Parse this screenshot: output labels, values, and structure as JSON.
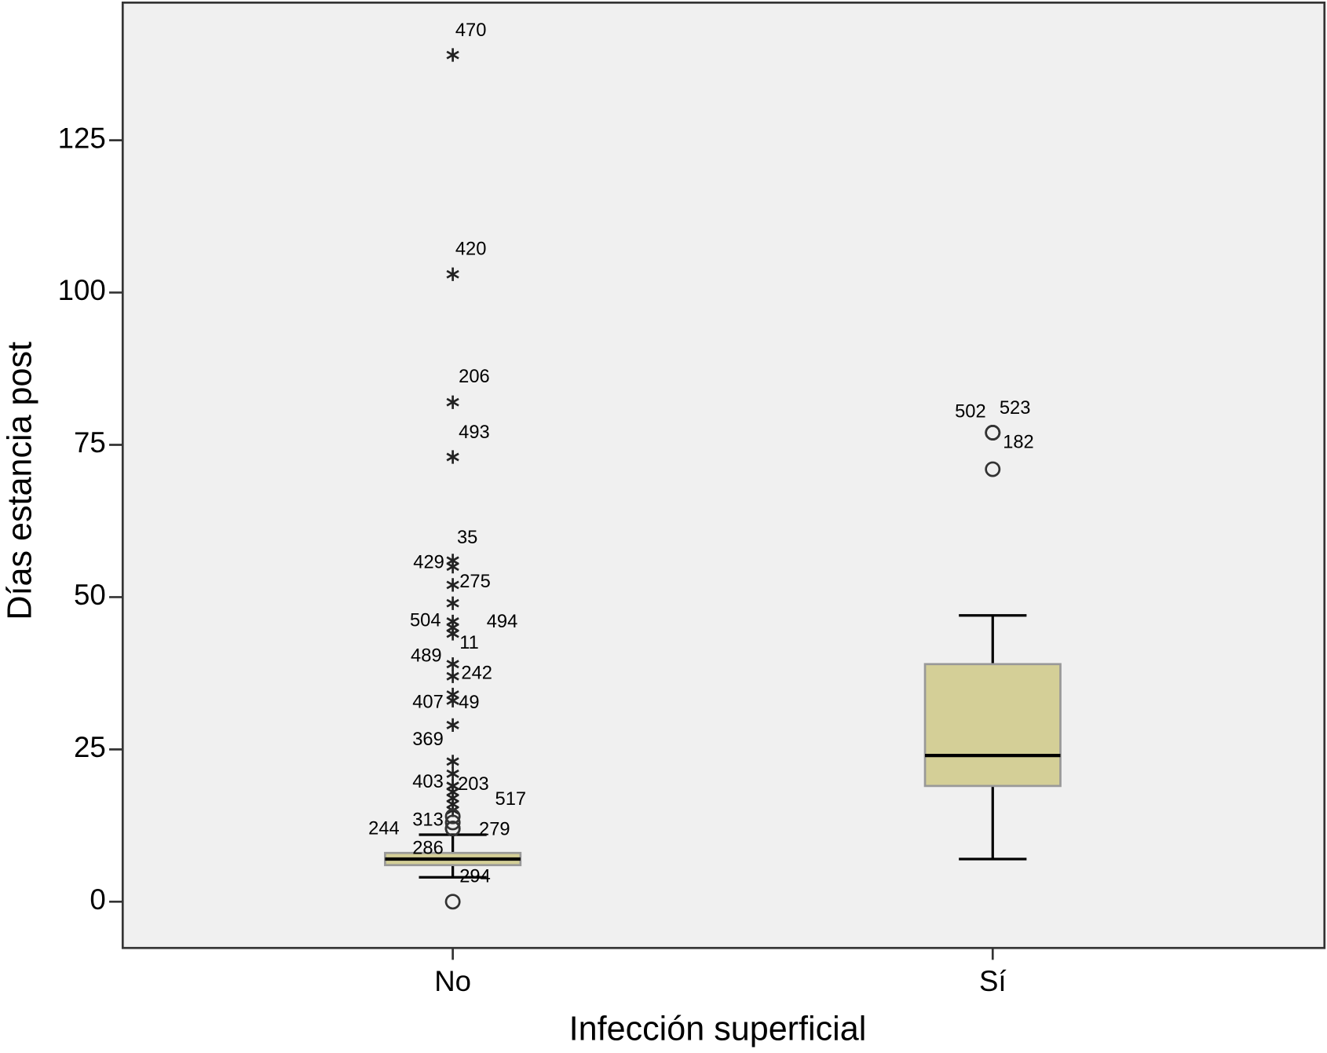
{
  "chart_data": {
    "type": "box",
    "x_label": "Infección superficial",
    "y_label": "Días estancia post",
    "categories": [
      "No",
      "Sí"
    ],
    "box_color": "#d4cf97",
    "background": "#f0f0f0",
    "ylim": [
      -7.6,
      147.6
    ],
    "yticks": [
      0,
      25,
      50,
      75,
      100,
      125
    ],
    "boxes": [
      {
        "min": 4,
        "q1": 6,
        "median": 7,
        "q3": 8,
        "max": 11,
        "outliers": [
          {
            "value": 139,
            "marker": "star",
            "label": "470"
          },
          {
            "value": 103,
            "marker": "star",
            "label": "420"
          },
          {
            "value": 82,
            "marker": "star",
            "label": "206"
          },
          {
            "value": 73,
            "marker": "star",
            "label": "493"
          },
          {
            "value": 56,
            "marker": "star",
            "label": "35"
          },
          {
            "value": 55,
            "marker": "star",
            "label": "429"
          },
          {
            "value": 52,
            "marker": "star",
            "label": "275"
          },
          {
            "value": 49,
            "marker": "star"
          },
          {
            "value": 46,
            "marker": "star",
            "label": "504"
          },
          {
            "value": 45,
            "marker": "star",
            "label": "494"
          },
          {
            "value": 44,
            "marker": "star",
            "label": "11"
          },
          {
            "value": 39,
            "marker": "star",
            "label": "489"
          },
          {
            "value": 37,
            "marker": "star",
            "label": "242"
          },
          {
            "value": 34,
            "marker": "star",
            "label": "407"
          },
          {
            "value": 33,
            "marker": "star",
            "label": "49"
          },
          {
            "value": 29,
            "marker": "star",
            "label": "369"
          },
          {
            "value": 23,
            "marker": "star"
          },
          {
            "value": 21,
            "marker": "star"
          },
          {
            "value": 19,
            "marker": "star",
            "label": "403"
          },
          {
            "value": 19,
            "marker": "star",
            "label": "203"
          },
          {
            "value": 18,
            "marker": "star"
          },
          {
            "value": 17,
            "marker": "star",
            "label": "517"
          },
          {
            "value": 16,
            "marker": "star"
          },
          {
            "value": 15,
            "marker": "star"
          },
          {
            "value": 14,
            "marker": "circle",
            "label": "313"
          },
          {
            "value": 13,
            "marker": "circle"
          },
          {
            "value": 12,
            "marker": "circle",
            "label": "279"
          },
          {
            "value": 12,
            "marker": "circle",
            "label": "244"
          },
          {
            "value": 12,
            "marker": "circle",
            "label": "286"
          },
          {
            "value": 0,
            "marker": "circle",
            "label": "294"
          }
        ]
      },
      {
        "min": 7,
        "q1": 19,
        "median": 24,
        "q3": 39,
        "max": 47,
        "outliers": [
          {
            "value": 77,
            "marker": "circle",
            "label": "502"
          },
          {
            "value": 77,
            "marker": "circle",
            "label": "523"
          },
          {
            "value": 71,
            "marker": "circle",
            "label": "182"
          }
        ]
      }
    ]
  }
}
